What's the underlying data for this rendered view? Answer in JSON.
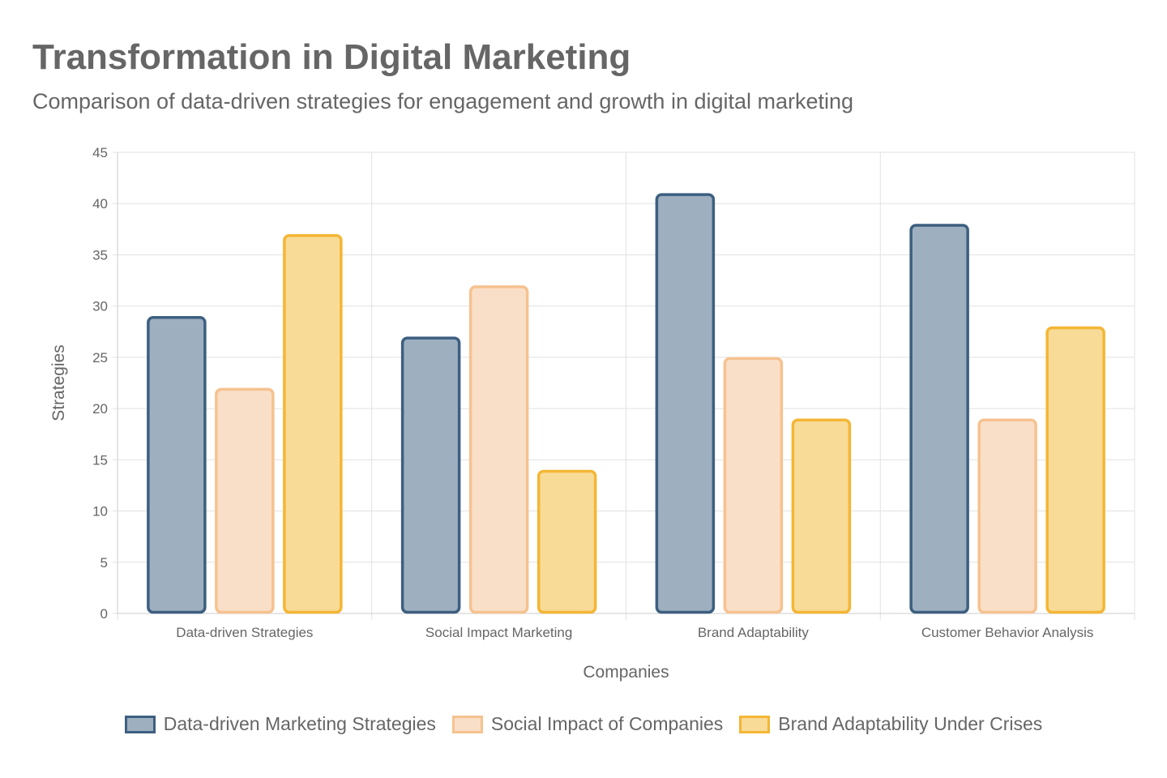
{
  "chart_data": {
    "type": "bar",
    "title": "Transformation in Digital Marketing",
    "subtitle": "Comparison of data-driven strategies for engagement and growth in digital marketing",
    "xlabel": "Companies",
    "ylabel": "Strategies",
    "ylim": [
      0,
      45
    ],
    "yticks": [
      0,
      5,
      10,
      15,
      20,
      25,
      30,
      35,
      40,
      45
    ],
    "grid": true,
    "legend_position": "bottom",
    "categories": [
      "Data-driven Strategies",
      "Social Impact Marketing",
      "Brand Adaptability",
      "Customer Behavior Analysis"
    ],
    "series": [
      {
        "name": "Data-driven Marketing Strategies",
        "values": [
          29,
          27,
          41,
          38
        ],
        "fill": "#9eb0c0",
        "stroke": "#3d5f80"
      },
      {
        "name": "Social Impact of Companies",
        "values": [
          22,
          32,
          25,
          19
        ],
        "fill": "#f9dfc7",
        "stroke": "#f6c290"
      },
      {
        "name": "Brand Adaptability Under Crises",
        "values": [
          37,
          14,
          19,
          28
        ],
        "fill": "#f8db97",
        "stroke": "#f4b635"
      }
    ]
  }
}
